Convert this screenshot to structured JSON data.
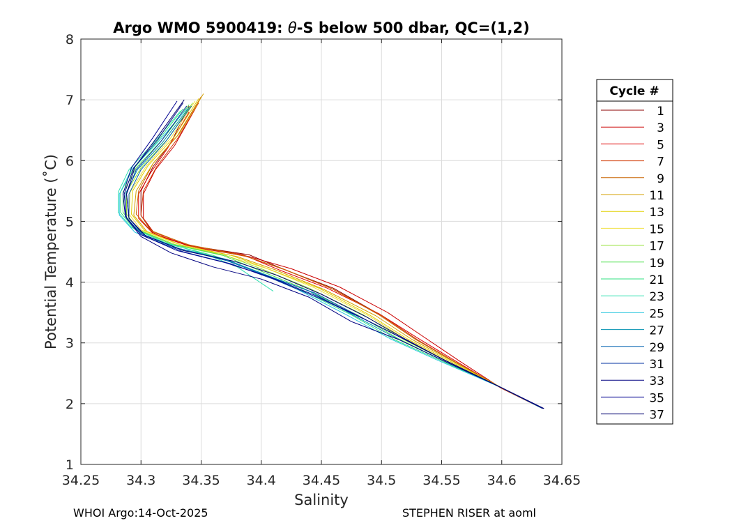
{
  "chart_data": {
    "type": "line",
    "title_prefix": "Argo WMO 5900419: ",
    "title_theta": "θ",
    "title_suffix": "-S below 500 dbar,  QC=(1,2)",
    "xlabel": "Salinity",
    "ylabel": "Potential Temperature (˚C)",
    "xlim": [
      34.25,
      34.65
    ],
    "ylim": [
      1,
      8
    ],
    "xticks": [
      34.25,
      34.3,
      34.35,
      34.4,
      34.45,
      34.5,
      34.55,
      34.6,
      34.65
    ],
    "xtick_labels": [
      "34.25",
      "34.3",
      "34.35",
      "34.4",
      "34.45",
      "34.5",
      "34.55",
      "34.6",
      "34.65"
    ],
    "yticks": [
      1,
      2,
      3,
      4,
      5,
      6,
      7,
      8
    ],
    "ytick_labels": [
      "1",
      "2",
      "3",
      "4",
      "5",
      "6",
      "7",
      "8"
    ],
    "grid": true,
    "legend_title": "Cycle #",
    "legend_entries": [
      "1",
      "3",
      "5",
      "7",
      "9",
      "11",
      "13",
      "15",
      "17",
      "19",
      "21",
      "23",
      "25",
      "27",
      "29",
      "31",
      "33",
      "35",
      "37"
    ],
    "legend_colors": [
      "#8b0000",
      "#cc0000",
      "#e00000",
      "#d2400c",
      "#c86400",
      "#d4a000",
      "#e0d000",
      "#f0e040",
      "#90e030",
      "#50e050",
      "#30e080",
      "#30e0b0",
      "#30c8e0",
      "#0090b0",
      "#0060b0",
      "#0030a0",
      "#000080",
      "#000090",
      "#000070"
    ],
    "legend_position": "outside-right",
    "series": [
      {
        "name": "1",
        "color": "#8b0000",
        "salinity": [
          34.34,
          34.325,
          34.31,
          34.3,
          34.3,
          34.31,
          34.34,
          34.39,
          34.42,
          34.46,
          34.5,
          34.53,
          34.56,
          34.6,
          34.635
        ],
        "theta": [
          6.9,
          6.3,
          5.9,
          5.5,
          5.1,
          4.8,
          4.6,
          4.45,
          4.2,
          3.9,
          3.45,
          3.05,
          2.7,
          2.25,
          1.92
        ]
      },
      {
        "name": "3",
        "color": "#cc0000",
        "salinity": [
          34.345,
          34.328,
          34.312,
          34.302,
          34.302,
          34.312,
          34.342,
          34.39,
          34.425,
          34.465,
          34.505,
          34.535,
          34.565,
          34.6,
          34.634
        ],
        "theta": [
          6.85,
          6.25,
          5.85,
          5.45,
          5.05,
          4.78,
          4.58,
          4.42,
          4.22,
          3.92,
          3.5,
          3.1,
          2.7,
          2.25,
          1.92
        ]
      },
      {
        "name": "5",
        "color": "#e00000",
        "salinity": [
          34.34,
          34.322,
          34.308,
          34.298,
          34.298,
          34.31,
          34.34,
          34.385,
          34.415,
          34.455,
          34.498,
          34.53,
          34.56,
          34.6,
          34.634
        ],
        "theta": [
          6.8,
          6.2,
          5.8,
          5.45,
          5.05,
          4.8,
          4.6,
          4.45,
          4.2,
          3.9,
          3.48,
          3.08,
          2.72,
          2.25,
          1.92
        ]
      },
      {
        "name": "7",
        "color": "#d2400c",
        "salinity": [
          34.348,
          34.33,
          34.313,
          34.302,
          34.3,
          34.31,
          34.342,
          34.388,
          34.42,
          34.46,
          34.5,
          34.53,
          34.56,
          34.6,
          34.633
        ],
        "theta": [
          6.95,
          6.35,
          5.9,
          5.5,
          5.1,
          4.82,
          4.6,
          4.42,
          4.2,
          3.88,
          3.45,
          3.05,
          2.7,
          2.25,
          1.93
        ]
      },
      {
        "name": "9",
        "color": "#c86400",
        "salinity": [
          34.35,
          34.33,
          34.31,
          34.298,
          34.296,
          34.308,
          34.338,
          34.385,
          34.418,
          34.458,
          34.498,
          34.528,
          34.558,
          34.6,
          34.633
        ],
        "theta": [
          7.05,
          6.4,
          5.95,
          5.5,
          5.12,
          4.85,
          4.62,
          4.44,
          4.22,
          3.9,
          3.46,
          3.06,
          2.72,
          2.26,
          1.93
        ]
      },
      {
        "name": "11",
        "color": "#d4a000",
        "salinity": [
          34.352,
          34.332,
          34.31,
          34.296,
          34.294,
          34.305,
          34.335,
          34.38,
          34.412,
          34.452,
          34.495,
          34.525,
          34.557,
          34.6,
          34.633
        ],
        "theta": [
          7.1,
          6.45,
          5.95,
          5.5,
          5.1,
          4.83,
          4.6,
          4.42,
          4.2,
          3.88,
          3.45,
          3.06,
          2.72,
          2.26,
          1.93
        ]
      },
      {
        "name": "13",
        "color": "#e0d000",
        "salinity": [
          34.348,
          34.328,
          34.306,
          34.293,
          34.292,
          34.303,
          34.332,
          34.375,
          34.408,
          34.448,
          34.49,
          34.522,
          34.555,
          34.6,
          34.633
        ],
        "theta": [
          7.02,
          6.4,
          5.92,
          5.5,
          5.12,
          4.85,
          4.62,
          4.44,
          4.2,
          3.9,
          3.46,
          3.06,
          2.72,
          2.26,
          1.93
        ]
      },
      {
        "name": "15",
        "color": "#f0e040",
        "salinity": [
          34.345,
          34.325,
          34.304,
          34.291,
          34.29,
          34.3,
          34.33,
          34.37,
          34.405,
          34.445,
          34.488,
          34.52,
          34.553,
          34.6,
          34.633
        ],
        "theta": [
          6.98,
          6.38,
          5.9,
          5.48,
          5.12,
          4.86,
          4.63,
          4.44,
          4.22,
          3.9,
          3.46,
          3.06,
          2.72,
          2.26,
          1.93
        ]
      },
      {
        "name": "17",
        "color": "#90e030",
        "salinity": [
          34.343,
          34.322,
          34.3,
          34.288,
          34.288,
          34.298,
          34.328,
          34.37,
          34.4,
          34.44,
          34.485,
          34.518,
          34.552,
          34.6,
          34.633
        ],
        "theta": [
          6.95,
          6.35,
          5.88,
          5.48,
          5.12,
          4.86,
          4.62,
          4.44,
          4.22,
          3.9,
          3.46,
          3.06,
          2.72,
          2.26,
          1.93
        ]
      },
      {
        "name": "19",
        "color": "#50e050",
        "salinity": [
          34.34,
          34.318,
          34.296,
          34.285,
          34.285,
          34.296,
          34.326,
          34.368,
          34.395,
          34.435,
          34.48,
          34.515,
          34.55,
          34.6,
          34.633
        ],
        "theta": [
          6.92,
          6.35,
          5.88,
          5.48,
          5.15,
          4.87,
          4.62,
          4.44,
          4.22,
          3.9,
          3.46,
          3.06,
          2.72,
          2.26,
          1.93
        ]
      },
      {
        "name": "21",
        "color": "#30e080",
        "salinity": [
          34.335,
          34.313,
          34.293,
          34.283,
          34.283,
          34.294,
          34.322,
          34.36,
          34.39,
          34.43,
          34.475,
          34.51,
          34.548,
          34.6,
          34.633
        ],
        "theta": [
          6.85,
          6.3,
          5.85,
          5.48,
          5.15,
          4.88,
          4.63,
          4.44,
          4.22,
          3.9,
          3.46,
          3.06,
          2.72,
          2.26,
          1.93
        ]
      },
      {
        "name": "23",
        "color": "#30e0b0",
        "salinity": [
          34.333,
          34.31,
          34.29,
          34.281,
          34.281,
          34.292,
          34.32,
          34.355,
          34.38,
          34.41
        ],
        "theta": [
          6.82,
          6.28,
          5.85,
          5.48,
          5.15,
          4.9,
          4.65,
          4.45,
          4.25,
          3.85
        ]
      },
      {
        "name": "25",
        "color": "#30c8e0",
        "salinity": [
          34.338,
          34.314,
          34.292,
          34.282,
          34.282,
          34.295,
          34.325,
          34.365,
          34.395,
          34.43,
          34.472,
          34.508,
          34.546,
          34.6,
          34.633
        ],
        "theta": [
          6.85,
          6.3,
          5.85,
          5.45,
          5.1,
          4.82,
          4.58,
          4.4,
          4.18,
          3.88,
          3.45,
          3.06,
          2.72,
          2.26,
          1.93
        ]
      },
      {
        "name": "27",
        "color": "#0090b0",
        "salinity": [
          34.34,
          34.318,
          34.297,
          34.287,
          34.287,
          34.3,
          34.33,
          34.37,
          34.4,
          34.44,
          34.48,
          34.515,
          34.55,
          34.6,
          34.633
        ],
        "theta": [
          6.88,
          6.3,
          5.85,
          5.45,
          5.08,
          4.8,
          4.56,
          4.38,
          4.15,
          3.85,
          3.42,
          3.05,
          2.72,
          2.26,
          1.93
        ]
      },
      {
        "name": "29",
        "color": "#0060b0",
        "salinity": [
          34.342,
          34.32,
          34.3,
          34.29,
          34.29,
          34.302,
          34.332,
          34.372,
          34.402,
          34.445,
          34.485,
          34.52,
          34.552,
          34.6,
          34.634
        ],
        "theta": [
          6.9,
          6.3,
          5.85,
          5.45,
          5.05,
          4.78,
          4.55,
          4.35,
          4.12,
          3.82,
          3.4,
          3.05,
          2.72,
          2.26,
          1.92
        ]
      },
      {
        "name": "31",
        "color": "#0030a0",
        "salinity": [
          34.338,
          34.316,
          34.296,
          34.288,
          34.29,
          34.303,
          34.335,
          34.375,
          34.41,
          34.45,
          34.49,
          34.52,
          34.552,
          34.6,
          34.634
        ],
        "theta": [
          6.9,
          6.3,
          5.85,
          5.45,
          5.05,
          4.75,
          4.5,
          4.3,
          4.05,
          3.72,
          3.35,
          3.05,
          2.72,
          2.26,
          1.92
        ]
      },
      {
        "name": "33",
        "color": "#000080",
        "salinity": [
          34.335,
          34.314,
          34.294,
          34.286,
          34.288,
          34.3,
          34.325,
          34.36,
          34.4,
          34.44,
          34.475,
          34.515,
          34.55,
          34.6,
          34.635
        ],
        "theta": [
          6.95,
          6.35,
          5.88,
          5.45,
          5.05,
          4.75,
          4.48,
          4.25,
          4.05,
          3.75,
          3.35,
          3.05,
          2.72,
          2.26,
          1.92
        ]
      },
      {
        "name": "35",
        "color": "#000090",
        "salinity": [
          34.33,
          34.31,
          34.292,
          34.285,
          34.287,
          34.3,
          34.33,
          34.37,
          34.405,
          34.445,
          34.485,
          34.52,
          34.552,
          34.6,
          34.635
        ],
        "theta": [
          6.98,
          6.38,
          5.88,
          5.45,
          5.08,
          4.78,
          4.52,
          4.32,
          4.1,
          3.78,
          3.4,
          3.05,
          2.72,
          2.26,
          1.92
        ]
      },
      {
        "name": "37",
        "color": "#000070",
        "salinity": [
          34.336,
          34.314,
          34.295,
          34.288,
          34.29,
          34.304,
          34.335,
          34.378,
          34.412,
          34.45,
          34.488,
          34.52,
          34.552,
          34.6,
          34.635
        ],
        "theta": [
          7.0,
          6.4,
          5.9,
          5.45,
          5.05,
          4.76,
          4.52,
          4.34,
          4.12,
          3.8,
          3.42,
          3.06,
          2.72,
          2.26,
          1.92
        ]
      }
    ]
  },
  "footer": {
    "left": "WHOI Argo:14-Oct-2025",
    "right": "STEPHEN RISER at aoml"
  }
}
